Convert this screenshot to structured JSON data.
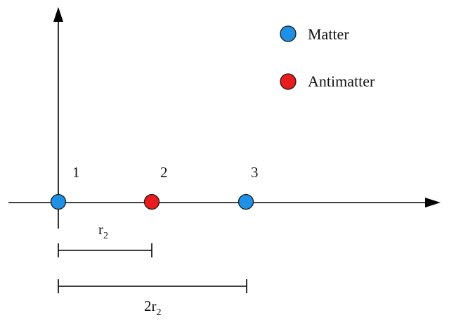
{
  "legend": {
    "items": [
      {
        "label": "Matter",
        "color": "#1E90E6"
      },
      {
        "label": "Antimatter",
        "color": "#E81C1C"
      }
    ]
  },
  "particles": [
    {
      "label": "1",
      "kind": "Matter",
      "color": "#1E90E6"
    },
    {
      "label": "2",
      "kind": "Antimatter",
      "color": "#E81C1C"
    },
    {
      "label": "3",
      "kind": "Matter",
      "color": "#1E90E6"
    }
  ],
  "dimensions": {
    "r2": {
      "main": "r",
      "sub": "2"
    },
    "two_r2": {
      "main": "2r",
      "sub": "2"
    }
  },
  "colors": {
    "matter": "#1E90E6",
    "antimatter": "#E81C1C",
    "outline": "#1a1a1a",
    "lines": "#000000"
  }
}
